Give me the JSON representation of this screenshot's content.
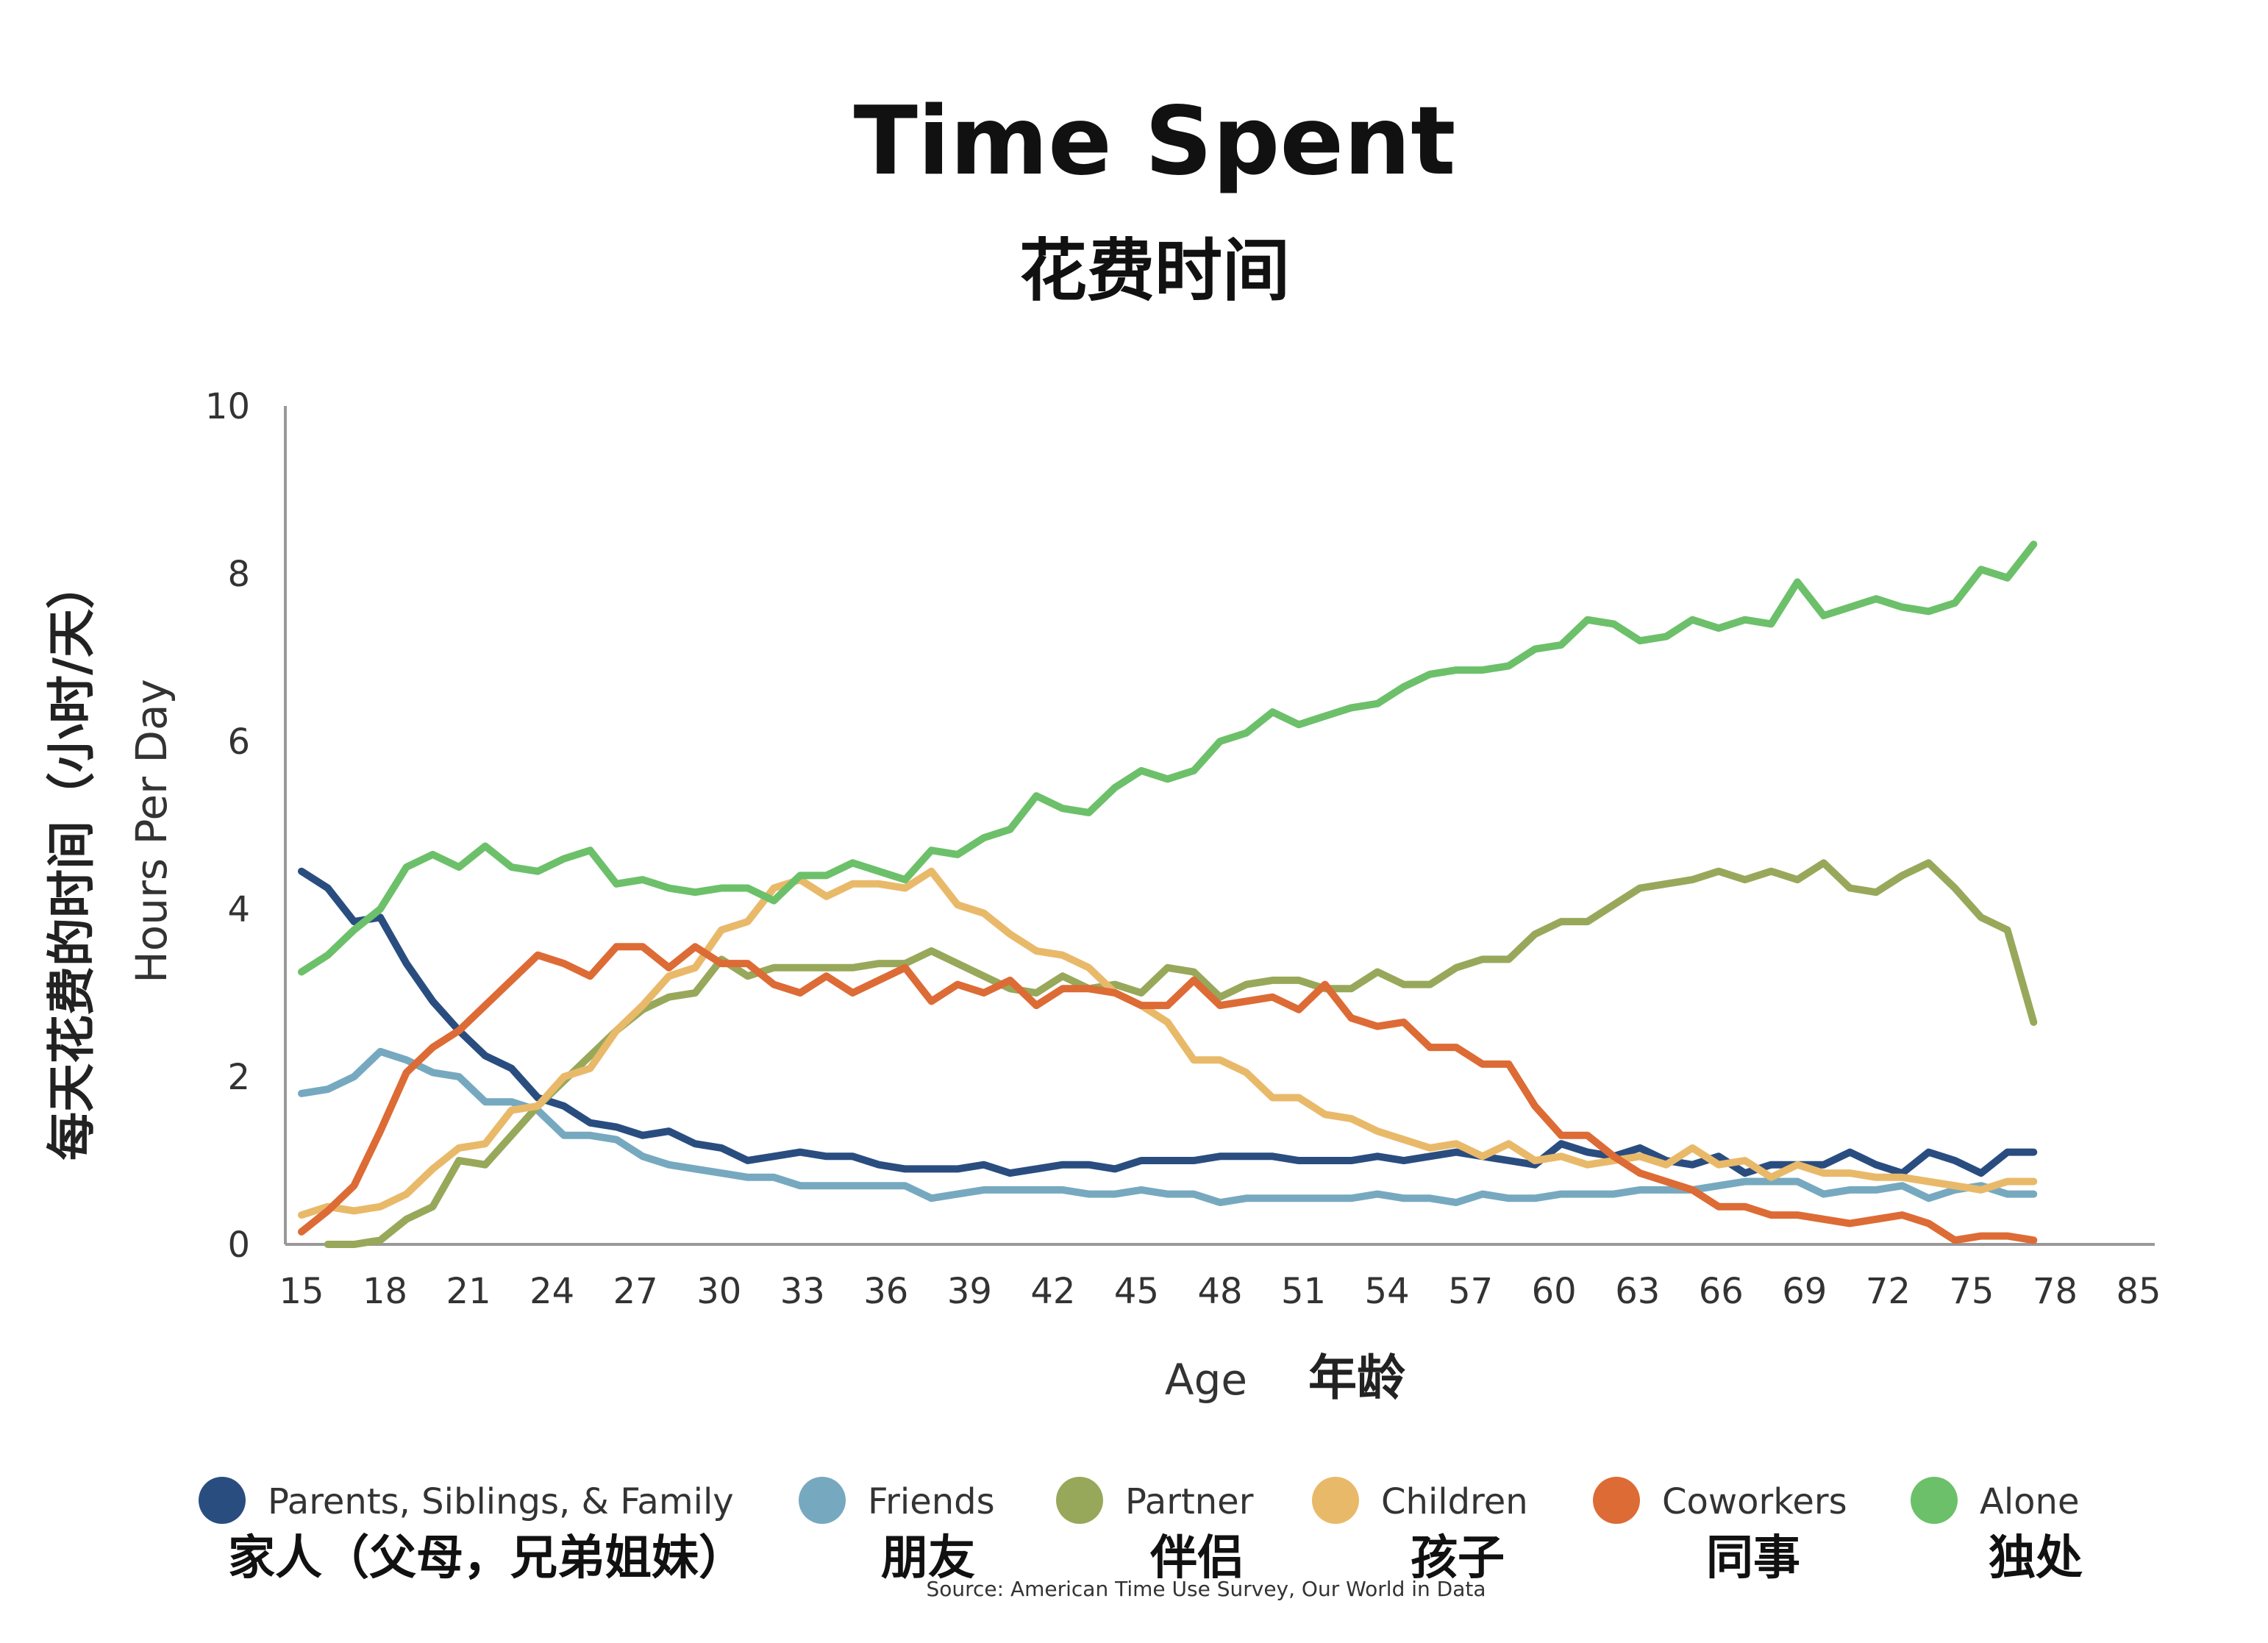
{
  "chart_data": {
    "type": "line",
    "title": "Time Spent",
    "subtitle": "花费时间",
    "xlabel": "Age",
    "xlabel_cn": "年龄",
    "ylabel": "Hours Per Day",
    "ylabel_cn": "每天花费的时间（小时/天）",
    "xlim": [
      15,
      85
    ],
    "ylim": [
      0,
      10
    ],
    "xticks": [
      "15",
      "18",
      "21",
      "24",
      "27",
      "30",
      "33",
      "36",
      "39",
      "42",
      "45",
      "48",
      "51",
      "54",
      "57",
      "60",
      "63",
      "66",
      "69",
      "72",
      "75",
      "78",
      "85"
    ],
    "yticks": [
      "0",
      "2",
      "4",
      "6",
      "8",
      "10"
    ],
    "grid": false,
    "legend_position": "bottom",
    "source": "Source: American Time Use Survey, Our World in Data",
    "series": [
      {
        "name": "Parents, Siblings, & Family",
        "name_cn": "家人（父母，兄弟姐妹）",
        "color": "#2a4d80",
        "x": [
          15,
          16,
          17,
          18,
          19,
          20,
          21,
          22,
          23,
          24,
          25,
          26,
          27,
          28,
          29,
          30,
          31,
          32,
          33,
          34,
          35,
          36,
          37,
          38,
          39,
          40,
          41,
          42,
          43,
          44,
          45,
          46,
          47,
          48,
          49,
          50,
          51,
          52,
          53,
          54,
          55,
          56,
          57,
          58,
          59,
          60,
          61,
          62,
          63,
          64,
          65,
          66,
          67,
          68,
          69,
          70,
          71,
          72,
          73,
          74,
          75,
          76,
          77,
          78,
          79,
          80,
          81
        ],
        "y": [
          4.45,
          4.25,
          3.85,
          3.9,
          3.35,
          2.9,
          2.55,
          2.25,
          2.1,
          1.75,
          1.65,
          1.45,
          1.4,
          1.3,
          1.35,
          1.2,
          1.15,
          1.0,
          1.05,
          1.1,
          1.05,
          1.05,
          0.95,
          0.9,
          0.9,
          0.9,
          0.95,
          0.85,
          0.9,
          0.95,
          0.95,
          0.9,
          1.0,
          1.0,
          1.0,
          1.05,
          1.05,
          1.05,
          1.0,
          1.0,
          1.0,
          1.05,
          1.0,
          1.05,
          1.1,
          1.05,
          1.0,
          0.95,
          1.2,
          1.1,
          1.05,
          1.15,
          1.0,
          0.95,
          1.05,
          0.85,
          0.95,
          0.95,
          0.95,
          1.1,
          0.95,
          0.85,
          1.1,
          1.0,
          0.85,
          1.1,
          1.1
        ]
      },
      {
        "name": "Friends",
        "name_cn": "朋友",
        "color": "#76a9bf",
        "x": [
          15,
          16,
          17,
          18,
          19,
          20,
          21,
          22,
          23,
          24,
          25,
          26,
          27,
          28,
          29,
          30,
          31,
          32,
          33,
          34,
          35,
          36,
          37,
          38,
          39,
          40,
          41,
          42,
          43,
          44,
          45,
          46,
          47,
          48,
          49,
          50,
          51,
          52,
          53,
          54,
          55,
          56,
          57,
          58,
          59,
          60,
          61,
          62,
          63,
          64,
          65,
          66,
          67,
          68,
          69,
          70,
          71,
          72,
          73,
          74,
          75,
          76,
          77,
          78,
          79,
          80,
          81
        ],
        "y": [
          1.8,
          1.85,
          2.0,
          2.3,
          2.2,
          2.05,
          2.0,
          1.7,
          1.7,
          1.6,
          1.3,
          1.3,
          1.25,
          1.05,
          0.95,
          0.9,
          0.85,
          0.8,
          0.8,
          0.7,
          0.7,
          0.7,
          0.7,
          0.7,
          0.55,
          0.6,
          0.65,
          0.65,
          0.65,
          0.65,
          0.6,
          0.6,
          0.65,
          0.6,
          0.6,
          0.5,
          0.55,
          0.55,
          0.55,
          0.55,
          0.55,
          0.6,
          0.55,
          0.55,
          0.5,
          0.6,
          0.55,
          0.55,
          0.6,
          0.6,
          0.6,
          0.65,
          0.65,
          0.65,
          0.7,
          0.75,
          0.75,
          0.75,
          0.6,
          0.65,
          0.65,
          0.7,
          0.55,
          0.65,
          0.7,
          0.6,
          0.6
        ]
      },
      {
        "name": "Partner",
        "name_cn": "伴侣",
        "color": "#98a85a",
        "x": [
          16,
          17,
          18,
          19,
          20,
          21,
          22,
          23,
          24,
          25,
          26,
          27,
          28,
          29,
          30,
          31,
          32,
          33,
          34,
          35,
          36,
          37,
          38,
          39,
          40,
          41,
          42,
          43,
          44,
          45,
          46,
          47,
          48,
          49,
          50,
          51,
          52,
          53,
          54,
          55,
          56,
          57,
          58,
          59,
          60,
          61,
          62,
          63,
          64,
          65,
          66,
          67,
          68,
          69,
          70,
          71,
          72,
          73,
          74,
          75,
          76,
          77,
          78,
          79,
          80,
          81
        ],
        "y": [
          0.0,
          0.0,
          0.05,
          0.3,
          0.45,
          1.0,
          0.95,
          1.3,
          1.65,
          1.95,
          2.25,
          2.55,
          2.8,
          2.95,
          3.0,
          3.4,
          3.2,
          3.3,
          3.3,
          3.3,
          3.3,
          3.35,
          3.35,
          3.5,
          3.35,
          3.2,
          3.05,
          3.0,
          3.2,
          3.05,
          3.1,
          3.0,
          3.3,
          3.25,
          2.95,
          3.1,
          3.15,
          3.15,
          3.05,
          3.05,
          3.25,
          3.1,
          3.1,
          3.3,
          3.4,
          3.4,
          3.7,
          3.85,
          3.85,
          4.05,
          4.25,
          4.3,
          4.35,
          4.45,
          4.35,
          4.45,
          4.35,
          4.55,
          4.25,
          4.2,
          4.4,
          4.55,
          4.25,
          3.9,
          3.75,
          2.65
        ]
      },
      {
        "name": "Children",
        "name_cn": "孩子",
        "color": "#e9b96a",
        "x": [
          15,
          16,
          17,
          18,
          19,
          20,
          21,
          22,
          23,
          24,
          25,
          26,
          27,
          28,
          29,
          30,
          31,
          32,
          33,
          34,
          35,
          36,
          37,
          38,
          39,
          40,
          41,
          42,
          43,
          44,
          45,
          46,
          47,
          48,
          49,
          50,
          51,
          52,
          53,
          54,
          55,
          56,
          57,
          58,
          59,
          60,
          61,
          62,
          63,
          64,
          65,
          66,
          67,
          68,
          69,
          70,
          71,
          72,
          73,
          74,
          75,
          76,
          77,
          78,
          79,
          80,
          81
        ],
        "y": [
          0.35,
          0.45,
          0.4,
          0.45,
          0.6,
          0.9,
          1.15,
          1.2,
          1.6,
          1.65,
          2.0,
          2.1,
          2.55,
          2.85,
          3.2,
          3.3,
          3.75,
          3.85,
          4.25,
          4.35,
          4.15,
          4.3,
          4.3,
          4.25,
          4.45,
          4.05,
          3.95,
          3.7,
          3.5,
          3.45,
          3.3,
          3.0,
          2.85,
          2.65,
          2.2,
          2.2,
          2.05,
          1.75,
          1.75,
          1.55,
          1.5,
          1.35,
          1.25,
          1.15,
          1.2,
          1.05,
          1.2,
          1.0,
          1.05,
          0.95,
          1.0,
          1.05,
          0.95,
          1.15,
          0.95,
          1.0,
          0.8,
          0.95,
          0.85,
          0.85,
          0.8,
          0.8,
          0.75,
          0.7,
          0.65,
          0.75,
          0.75
        ]
      },
      {
        "name": "Coworkers",
        "name_cn": "同事",
        "color": "#dd6b35",
        "x": [
          15,
          16,
          17,
          18,
          19,
          20,
          21,
          22,
          23,
          24,
          25,
          26,
          27,
          28,
          29,
          30,
          31,
          32,
          33,
          34,
          35,
          36,
          37,
          38,
          39,
          40,
          41,
          42,
          43,
          44,
          45,
          46,
          47,
          48,
          49,
          50,
          51,
          52,
          53,
          54,
          55,
          56,
          57,
          58,
          59,
          60,
          61,
          62,
          63,
          64,
          65,
          66,
          67,
          68,
          69,
          70,
          71,
          72,
          73,
          74,
          75,
          76,
          77,
          78,
          79,
          80,
          81
        ],
        "y": [
          0.15,
          0.4,
          0.7,
          1.35,
          2.05,
          2.35,
          2.55,
          2.85,
          3.15,
          3.45,
          3.35,
          3.2,
          3.55,
          3.55,
          3.3,
          3.55,
          3.35,
          3.35,
          3.1,
          3.0,
          3.2,
          3.0,
          3.15,
          3.3,
          2.9,
          3.1,
          3.0,
          3.15,
          2.85,
          3.05,
          3.05,
          3.0,
          2.85,
          2.85,
          3.15,
          2.85,
          2.9,
          2.95,
          2.8,
          3.1,
          2.7,
          2.6,
          2.65,
          2.35,
          2.35,
          2.15,
          2.15,
          1.65,
          1.3,
          1.3,
          1.05,
          0.85,
          0.75,
          0.65,
          0.45,
          0.45,
          0.35,
          0.35,
          0.3,
          0.25,
          0.3,
          0.35,
          0.25,
          0.05,
          0.1,
          0.1,
          0.05
        ]
      },
      {
        "name": "Alone",
        "name_cn": "独处",
        "color": "#6cc06a",
        "x": [
          15,
          16,
          17,
          18,
          19,
          20,
          21,
          22,
          23,
          24,
          25,
          26,
          27,
          28,
          29,
          30,
          31,
          32,
          33,
          34,
          35,
          36,
          37,
          38,
          39,
          40,
          41,
          42,
          43,
          44,
          45,
          46,
          47,
          48,
          49,
          50,
          51,
          52,
          53,
          54,
          55,
          56,
          57,
          58,
          59,
          60,
          61,
          62,
          63,
          64,
          65,
          66,
          67,
          68,
          69,
          70,
          71,
          72,
          73,
          74,
          75,
          76,
          77,
          78,
          79,
          80,
          81
        ],
        "y": [
          3.25,
          3.45,
          3.75,
          4.0,
          4.5,
          4.65,
          4.5,
          4.75,
          4.5,
          4.45,
          4.6,
          4.7,
          4.3,
          4.35,
          4.25,
          4.2,
          4.25,
          4.25,
          4.1,
          4.4,
          4.4,
          4.55,
          4.45,
          4.35,
          4.7,
          4.65,
          4.85,
          4.95,
          5.35,
          5.2,
          5.15,
          5.45,
          5.65,
          5.55,
          5.65,
          6.0,
          6.1,
          6.35,
          6.2,
          6.3,
          6.4,
          6.45,
          6.65,
          6.8,
          6.85,
          6.85,
          6.9,
          7.1,
          7.15,
          7.45,
          7.4,
          7.2,
          7.25,
          7.45,
          7.35,
          7.45,
          7.4,
          7.9,
          7.5,
          7.6,
          7.7,
          7.6,
          7.55,
          7.65,
          8.05,
          7.95,
          8.35
        ]
      }
    ]
  }
}
